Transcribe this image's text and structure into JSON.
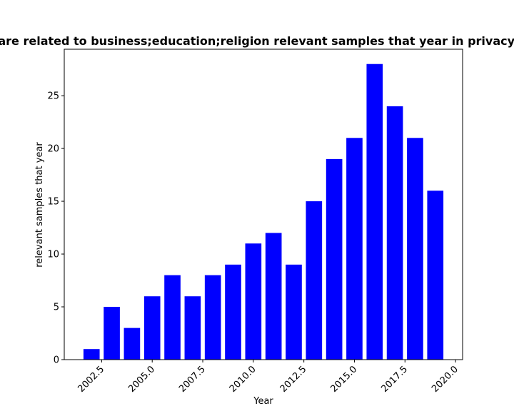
{
  "chart_data": {
    "type": "bar",
    "title": "Years are related to business;education;religion relevant samples that year in privacy policies",
    "xlabel": "Year",
    "ylabel": "relevant samples that year",
    "x": [
      2002,
      2003,
      2004,
      2005,
      2006,
      2007,
      2008,
      2009,
      2010,
      2011,
      2012,
      2013,
      2014,
      2015,
      2016,
      2017,
      2018,
      2019
    ],
    "values": [
      1,
      5,
      3,
      6,
      8,
      6,
      8,
      9,
      11,
      12,
      9,
      15,
      19,
      21,
      28,
      24,
      21,
      16
    ],
    "xlim": [
      2000.65,
      2020.35
    ],
    "ylim": [
      0,
      29.4
    ],
    "x_ticks": [
      2002.5,
      2005.0,
      2007.5,
      2010.0,
      2012.5,
      2015.0,
      2017.5,
      2020.0
    ],
    "x_tick_labels": [
      "2002.5",
      "2005.0",
      "2007.5",
      "2010.0",
      "2012.5",
      "2015.0",
      "2017.5",
      "2020.0"
    ],
    "y_ticks": [
      0,
      5,
      10,
      15,
      20,
      25
    ],
    "y_tick_labels": [
      "0",
      "5",
      "10",
      "15",
      "20",
      "25"
    ],
    "bar_color": "#0000ff",
    "grid": false,
    "legend": "none"
  }
}
